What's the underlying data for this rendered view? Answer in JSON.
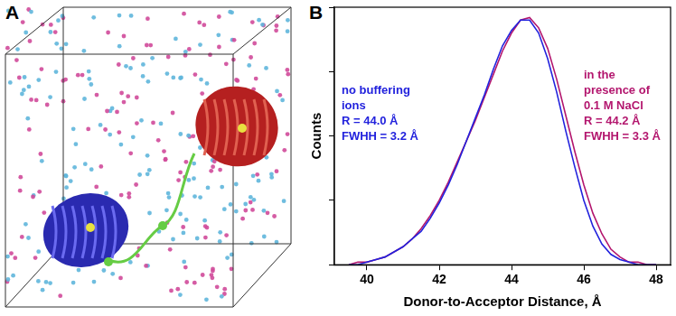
{
  "panel_labels": [
    "A",
    "B"
  ],
  "chart_data": {
    "type": "line",
    "x_label": "Donor-to-Acceptor Distance, Å",
    "y_label": "Counts",
    "x": [
      39.5,
      39.75,
      40.0,
      40.25,
      40.5,
      40.75,
      41.0,
      41.25,
      41.5,
      41.75,
      42.0,
      42.25,
      42.5,
      42.75,
      43.0,
      43.25,
      43.5,
      43.75,
      44.0,
      44.25,
      44.5,
      44.75,
      45.0,
      45.25,
      45.5,
      45.75,
      46.0,
      46.25,
      46.5,
      46.75,
      47.0,
      47.25,
      47.5,
      47.75,
      48.0
    ],
    "series": [
      {
        "name": "no buffering ions",
        "color": "#2222dd",
        "annotation": [
          "R = 44.0 Å",
          "FWHH = 3.2 Å"
        ],
        "values": [
          0,
          0,
          0.01,
          0.02,
          0.03,
          0.05,
          0.07,
          0.1,
          0.13,
          0.18,
          0.24,
          0.31,
          0.39,
          0.48,
          0.57,
          0.66,
          0.76,
          0.85,
          0.91,
          0.95,
          0.95,
          0.9,
          0.8,
          0.67,
          0.52,
          0.38,
          0.25,
          0.15,
          0.08,
          0.04,
          0.02,
          0.01,
          0,
          0,
          0
        ]
      },
      {
        "name": "in the presence of 0.1 M NaCl",
        "color": "#b3166e",
        "annotation": [
          "R = 44.2 Å",
          "FWHH = 3.3 Å"
        ],
        "values": [
          0,
          0.01,
          0.01,
          0.02,
          0.03,
          0.05,
          0.07,
          0.1,
          0.14,
          0.19,
          0.25,
          0.32,
          0.4,
          0.48,
          0.56,
          0.65,
          0.74,
          0.83,
          0.9,
          0.95,
          0.96,
          0.92,
          0.84,
          0.72,
          0.58,
          0.44,
          0.31,
          0.2,
          0.12,
          0.06,
          0.03,
          0.01,
          0.01,
          0,
          0
        ]
      }
    ],
    "xlim": [
      39.1,
      48.4
    ],
    "xticks": [
      40,
      42,
      44,
      46,
      48
    ],
    "ylim": [
      0,
      1
    ],
    "yticks": [
      0,
      0.25,
      0.5,
      0.75,
      1
    ],
    "tick_labels": "x",
    "grid": false
  }
}
